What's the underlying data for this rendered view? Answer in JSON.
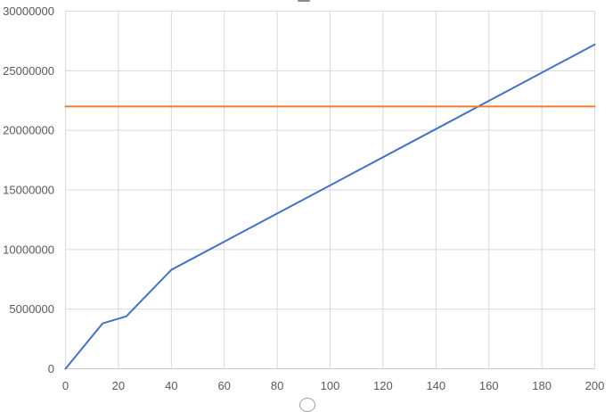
{
  "chart_data": {
    "type": "line",
    "title": "",
    "xlabel": "",
    "ylabel": "",
    "legend_position": "none",
    "grid": true,
    "x_axis": {
      "range": [
        0,
        200
      ],
      "ticks": [
        0,
        20,
        40,
        60,
        80,
        100,
        120,
        140,
        160,
        180,
        200
      ],
      "tick_labels": [
        "0",
        "20",
        "40",
        "60",
        "80",
        "100",
        "120",
        "140",
        "160",
        "180",
        "200"
      ]
    },
    "y_axis": {
      "range": [
        0,
        30000000
      ],
      "ticks": [
        0,
        5000000,
        10000000,
        15000000,
        20000000,
        25000000,
        30000000
      ],
      "tick_labels": [
        "0",
        "5000000",
        "10000000",
        "15000000",
        "20000000",
        "25000000",
        "30000000"
      ]
    },
    "series": [
      {
        "name": "blue-data-line",
        "color": "#4472C4",
        "stroke_width": 2,
        "points": [
          [
            0,
            0
          ],
          [
            14,
            3800000
          ],
          [
            23,
            4400000
          ],
          [
            40,
            8300000
          ],
          [
            200,
            27200000
          ]
        ]
      },
      {
        "name": "orange-threshold-line",
        "color": "#ED7D31",
        "stroke_width": 2,
        "points": [
          [
            0,
            22000000
          ],
          [
            200,
            22000000
          ]
        ]
      }
    ],
    "colors": {
      "gridline": "#D9D9D9",
      "axis_line": "#C8C8C8",
      "tick_label": "#595959",
      "background": "#FFFFFF"
    },
    "artifacts": {
      "top_center_clipped_title_sliver": true,
      "bottom_center_clipped_arc_sliver": true
    }
  }
}
